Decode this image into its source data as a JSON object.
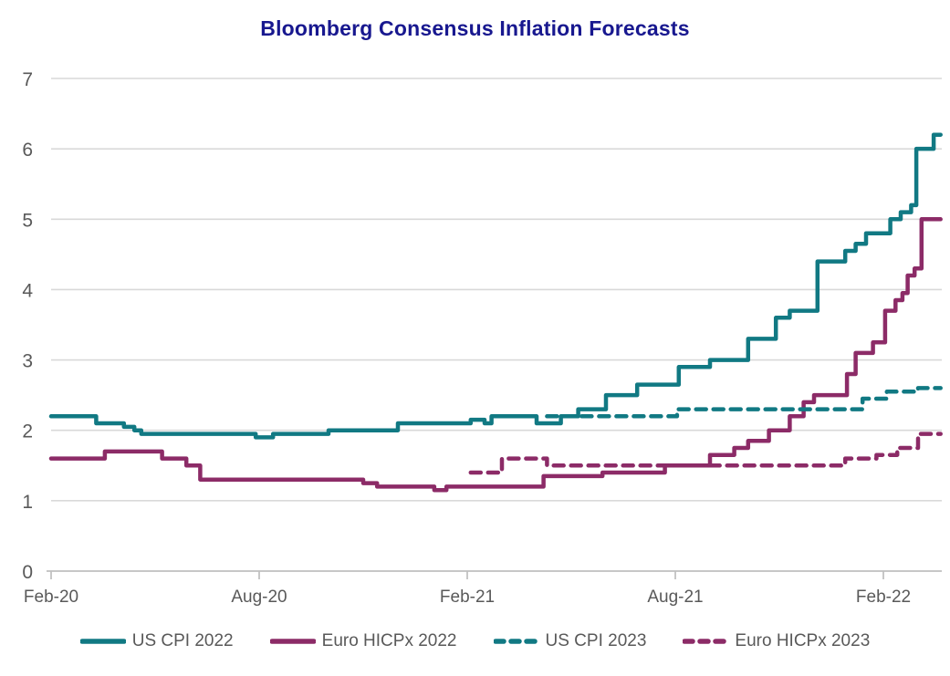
{
  "title": "Bloomberg Consensus Inflation Forecasts",
  "colors": {
    "teal": "#117983",
    "purple": "#8c2b67",
    "title_navy": "#18188f",
    "axis_text_gray": "#595959",
    "gridline_gray": "#d9d9d9",
    "axis_line_gray": "#bfbfbf",
    "background": "#ffffff"
  },
  "chart_data": {
    "type": "line",
    "title": "Bloomberg Consensus Inflation Forecasts",
    "xlabel": "",
    "ylabel": "",
    "x_unit": "months since Feb-2020",
    "ylim": [
      0,
      7
    ],
    "y_ticks": [
      0,
      1,
      2,
      3,
      4,
      5,
      6,
      7
    ],
    "x_tick_labels": [
      "Feb-20",
      "Aug-20",
      "Feb-21",
      "Aug-21",
      "Feb-22"
    ],
    "x_tick_months": [
      0,
      6,
      12,
      18,
      24
    ],
    "grid": "horizontal",
    "legend_position": "bottom",
    "line_shape": "step",
    "series": [
      {
        "name": "US CPI 2022",
        "color": "#117983",
        "line_style": "solid",
        "points": [
          [
            0,
            2.2
          ],
          [
            1.3,
            2.1
          ],
          [
            2.1,
            2.05
          ],
          [
            2.4,
            2.0
          ],
          [
            2.6,
            1.95
          ],
          [
            5.9,
            1.9
          ],
          [
            6.4,
            1.95
          ],
          [
            8,
            2.0
          ],
          [
            10,
            2.1
          ],
          [
            12.1,
            2.15
          ],
          [
            12.5,
            2.1
          ],
          [
            12.7,
            2.2
          ],
          [
            14,
            2.1
          ],
          [
            14.7,
            2.2
          ],
          [
            15.2,
            2.3
          ],
          [
            16,
            2.5
          ],
          [
            16.9,
            2.65
          ],
          [
            18.1,
            2.9
          ],
          [
            19,
            3.0
          ],
          [
            20.1,
            3.3
          ],
          [
            20.9,
            3.6
          ],
          [
            21.3,
            3.7
          ],
          [
            22.1,
            4.4
          ],
          [
            22.9,
            4.55
          ],
          [
            23.2,
            4.65
          ],
          [
            23.5,
            4.8
          ],
          [
            24.2,
            5.0
          ],
          [
            24.5,
            5.1
          ],
          [
            24.8,
            5.2
          ],
          [
            24.95,
            6.0
          ],
          [
            25.45,
            6.2
          ],
          [
            25.65,
            6.2
          ]
        ]
      },
      {
        "name": "Euro HICPx 2022",
        "color": "#8c2b67",
        "line_style": "solid",
        "points": [
          [
            0,
            1.6
          ],
          [
            1.55,
            1.7
          ],
          [
            3.2,
            1.6
          ],
          [
            3.9,
            1.5
          ],
          [
            4.3,
            1.3
          ],
          [
            9,
            1.25
          ],
          [
            9.4,
            1.2
          ],
          [
            11.05,
            1.15
          ],
          [
            11.4,
            1.2
          ],
          [
            14.2,
            1.35
          ],
          [
            15.9,
            1.4
          ],
          [
            17.7,
            1.5
          ],
          [
            19,
            1.65
          ],
          [
            19.7,
            1.75
          ],
          [
            20.1,
            1.85
          ],
          [
            20.7,
            2.0
          ],
          [
            21.3,
            2.2
          ],
          [
            21.7,
            2.4
          ],
          [
            22,
            2.5
          ],
          [
            22.95,
            2.8
          ],
          [
            23.2,
            3.1
          ],
          [
            23.7,
            3.25
          ],
          [
            24.05,
            3.7
          ],
          [
            24.35,
            3.85
          ],
          [
            24.55,
            3.95
          ],
          [
            24.7,
            4.2
          ],
          [
            24.9,
            4.3
          ],
          [
            25.1,
            5.0
          ],
          [
            25.65,
            5.0
          ]
        ]
      },
      {
        "name": "US CPI 2023",
        "color": "#117983",
        "line_style": "dashed",
        "points": [
          [
            14.3,
            2.2
          ],
          [
            18.05,
            2.3
          ],
          [
            23.4,
            2.45
          ],
          [
            24.1,
            2.55
          ],
          [
            25.0,
            2.6
          ],
          [
            25.65,
            2.6
          ]
        ]
      },
      {
        "name": "Euro HICPx 2023",
        "color": "#8c2b67",
        "line_style": "dashed",
        "points": [
          [
            12.1,
            1.4
          ],
          [
            13,
            1.6
          ],
          [
            14.3,
            1.5
          ],
          [
            22.9,
            1.6
          ],
          [
            23.8,
            1.65
          ],
          [
            24.4,
            1.75
          ],
          [
            25.0,
            1.95
          ],
          [
            25.65,
            1.95
          ]
        ]
      }
    ]
  }
}
